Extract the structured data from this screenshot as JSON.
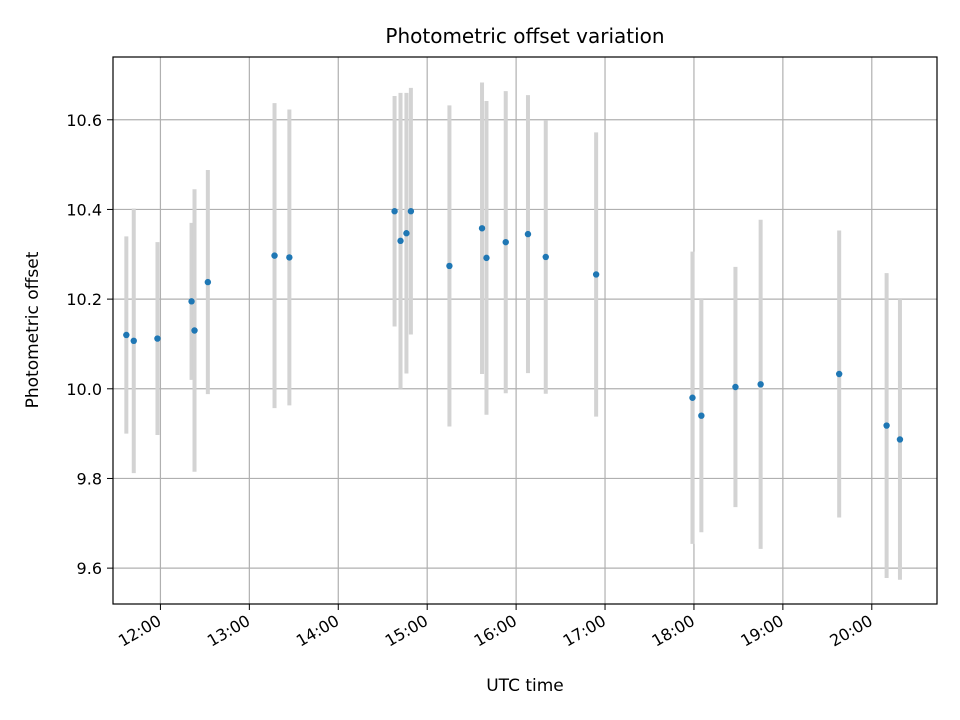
{
  "chart_data": {
    "type": "scatter",
    "title": "Photometric offset variation",
    "xlabel": "UTC time",
    "ylabel": "Photometric offset",
    "xlim": [
      "11:28",
      "20:44"
    ],
    "ylim": [
      9.52,
      10.74
    ],
    "grid": true,
    "marker_color": "#1f77b4",
    "errorbar_color": "#d3d3d3",
    "x_ticks": [
      "12:00",
      "13:00",
      "14:00",
      "15:00",
      "16:00",
      "17:00",
      "18:00",
      "19:00",
      "20:00"
    ],
    "y_ticks": [
      "9.6",
      "9.8",
      "10.0",
      "10.2",
      "10.4",
      "10.6"
    ],
    "points": [
      {
        "t": "11:37",
        "y": 10.12,
        "err": 0.22
      },
      {
        "t": "11:42",
        "y": 10.107,
        "err": 0.295
      },
      {
        "t": "11:58",
        "y": 10.112,
        "err": 0.215
      },
      {
        "t": "12:21",
        "y": 10.195,
        "err": 0.175
      },
      {
        "t": "12:23",
        "y": 10.13,
        "err": 0.315
      },
      {
        "t": "12:32",
        "y": 10.238,
        "err": 0.25
      },
      {
        "t": "13:17",
        "y": 10.297,
        "err": 0.34
      },
      {
        "t": "13:27",
        "y": 10.293,
        "err": 0.33
      },
      {
        "t": "14:38",
        "y": 10.396,
        "err": 0.257
      },
      {
        "t": "14:42",
        "y": 10.33,
        "err": 0.33
      },
      {
        "t": "14:46",
        "y": 10.347,
        "err": 0.313
      },
      {
        "t": "14:49",
        "y": 10.396,
        "err": 0.275
      },
      {
        "t": "15:15",
        "y": 10.274,
        "err": 0.358
      },
      {
        "t": "15:37",
        "y": 10.358,
        "err": 0.325
      },
      {
        "t": "15:40",
        "y": 10.292,
        "err": 0.35
      },
      {
        "t": "15:53",
        "y": 10.327,
        "err": 0.337
      },
      {
        "t": "16:08",
        "y": 10.345,
        "err": 0.31
      },
      {
        "t": "16:20",
        "y": 10.294,
        "err": 0.305
      },
      {
        "t": "16:54",
        "y": 10.255,
        "err": 0.317
      },
      {
        "t": "17:59",
        "y": 9.98,
        "err": 0.326
      },
      {
        "t": "18:05",
        "y": 9.94,
        "err": 0.26
      },
      {
        "t": "18:28",
        "y": 10.004,
        "err": 0.268
      },
      {
        "t": "18:45",
        "y": 10.01,
        "err": 0.367
      },
      {
        "t": "19:38",
        "y": 10.033,
        "err": 0.32
      },
      {
        "t": "20:10",
        "y": 9.918,
        "err": 0.34
      },
      {
        "t": "20:19",
        "y": 9.887,
        "err": 0.313
      }
    ]
  }
}
